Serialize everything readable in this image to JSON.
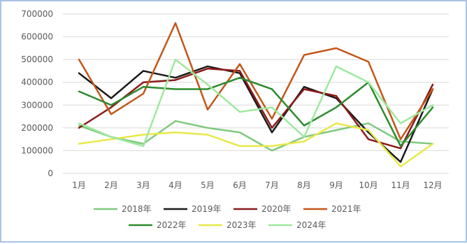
{
  "chart_data": {
    "type": "line",
    "title": "",
    "xlabel": "",
    "ylabel": "",
    "ylim": [
      0,
      700000
    ],
    "yticks": [
      0,
      100000,
      200000,
      300000,
      400000,
      500000,
      600000,
      700000
    ],
    "ytick_labels": [
      "0",
      "100000",
      "200000",
      "300000",
      "400000",
      "500000",
      "600000",
      "700000"
    ],
    "grid": true,
    "legend_position": "bottom",
    "categories": [
      "1月",
      "2月",
      "3月",
      "4月",
      "5月",
      "6月",
      "7月",
      "8月",
      "9月",
      "10月",
      "11月",
      "12月"
    ],
    "series": [
      {
        "name": "2018年",
        "color": "#7fc97f",
        "values": [
          210000,
          160000,
          130000,
          230000,
          200000,
          180000,
          100000,
          160000,
          190000,
          220000,
          140000,
          130000
        ]
      },
      {
        "name": "2019年",
        "color": "#1a1a1a",
        "values": [
          440000,
          330000,
          450000,
          420000,
          470000,
          440000,
          180000,
          380000,
          330000,
          180000,
          50000,
          370000
        ]
      },
      {
        "name": "2020年",
        "color": "#8b1a1a",
        "values": [
          200000,
          290000,
          400000,
          410000,
          460000,
          450000,
          200000,
          370000,
          340000,
          150000,
          110000,
          390000
        ]
      },
      {
        "name": "2021年",
        "color": "#c2571a",
        "values": [
          500000,
          260000,
          350000,
          660000,
          280000,
          480000,
          240000,
          520000,
          550000,
          490000,
          150000,
          370000
        ]
      },
      {
        "name": "2022年",
        "color": "#2e8b2e",
        "values": [
          360000,
          300000,
          380000,
          370000,
          370000,
          420000,
          370000,
          210000,
          290000,
          400000,
          120000,
          290000
        ]
      },
      {
        "name": "2023年",
        "color": "#e8e84a",
        "values": [
          130000,
          150000,
          170000,
          180000,
          170000,
          120000,
          120000,
          140000,
          220000,
          190000,
          30000,
          130000
        ]
      },
      {
        "name": "2024年",
        "color": "#9fe89f",
        "values": [
          220000,
          160000,
          120000,
          500000,
          390000,
          270000,
          290000,
          160000,
          470000,
          400000,
          220000,
          300000
        ]
      }
    ]
  }
}
